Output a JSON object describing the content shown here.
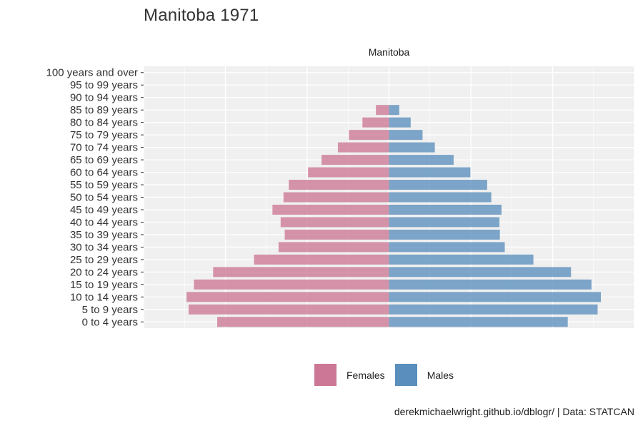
{
  "title": "Manitoba 1971",
  "caption": "derekmichaelwright.github.io/dblogr/ | Data: STATCAN",
  "chart_data": {
    "type": "bar",
    "orientation": "horizontal",
    "facet_label": "Manitoba",
    "categories": [
      "0 to 4 years",
      "5 to 9 years",
      "10 to 14 years",
      "15 to 19 years",
      "20 to 24 years",
      "25 to 29 years",
      "30 to 34 years",
      "35 to 39 years",
      "40 to 44 years",
      "45 to 49 years",
      "50 to 54 years",
      "55 to 59 years",
      "60 to 64 years",
      "65 to 69 years",
      "70 to 74 years",
      "75 to 79 years",
      "80 to 84 years",
      "85 to 89 years",
      "90 to 94 years",
      "95 to 99 years",
      "100 years and over"
    ],
    "series": [
      {
        "name": "Females",
        "color": "#cc7795",
        "values": [
          42000,
          49000,
          49500,
          47700,
          43000,
          33000,
          27000,
          25500,
          26500,
          28500,
          25800,
          24500,
          19800,
          16500,
          12500,
          9800,
          6500,
          3200,
          0,
          0,
          0
        ]
      },
      {
        "name": "Males",
        "color": "#5a8ebc",
        "values": [
          43700,
          51000,
          51800,
          49500,
          44500,
          35300,
          28300,
          27100,
          27000,
          27500,
          25000,
          24000,
          19900,
          15800,
          11200,
          8200,
          5300,
          2500,
          0,
          0,
          0
        ]
      }
    ],
    "xlim": [
      -60000,
      60000
    ],
    "grid": true,
    "legend_position": "bottom"
  }
}
